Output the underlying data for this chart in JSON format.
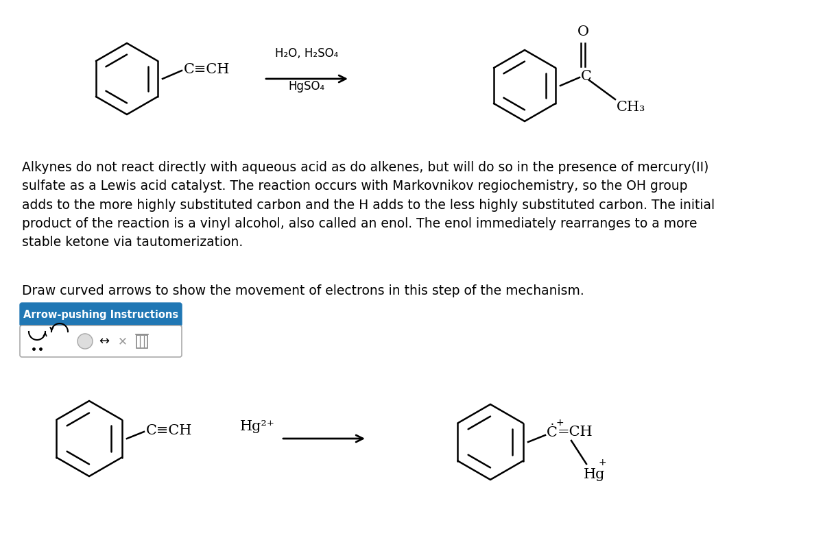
{
  "background_color": "#ffffff",
  "text_color": "#000000",
  "paragraph_text": "Alkynes do not react directly with aqueous acid as do alkenes, but will do so in the presence of mercury(II)\nsulfate as a Lewis acid catalyst. The reaction occurs with Markovnikov regiochemistry, so the OH group\nadds to the more highly substituted carbon and the H adds to the less highly substituted carbon. The initial\nproduct of the reaction is a vinyl alcohol, also called an enol. The enol immediately rearranges to a more\nstable ketone via tautomerization.",
  "instruction_text": "Draw curved arrows to show the movement of electrons in this step of the mechanism.",
  "button_text": "Arrow-pushing Instructions",
  "button_color": "#2077b4",
  "button_text_color": "#ffffff",
  "reaction1_line1": "H₂O, H₂SO₄",
  "reaction1_line2": "HgSO₄",
  "reaction2_reagent": "Hg²⁺",
  "font_size_body": 13.5,
  "font_size_reagent": 12,
  "font_size_chem": 15,
  "font_size_chem_small": 13
}
